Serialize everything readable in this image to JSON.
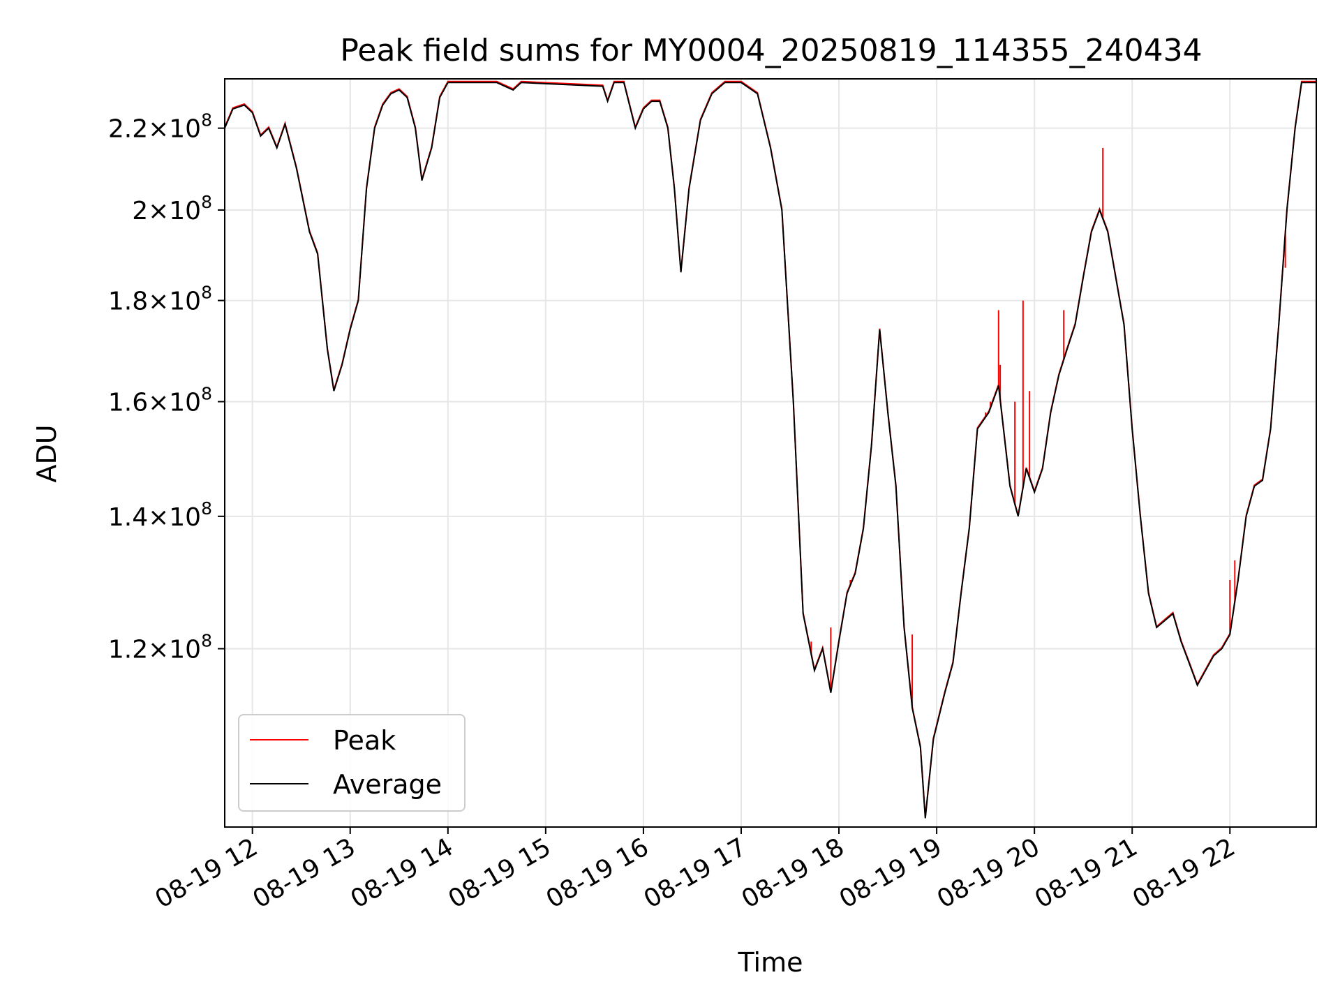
{
  "chart_data": {
    "type": "line",
    "title": "Peak field sums for MY0004_20250819_114355_240434",
    "xlabel": "Time",
    "ylabel": "ADU",
    "yscale": "log",
    "grid": true,
    "legend_position": "lower-left",
    "xlim": [
      "2025-08-19 11:43",
      "2025-08-19 22:53"
    ],
    "ylim": [
      97500000,
      233000000
    ],
    "x_ticks": [
      {
        "t": "2025-08-19 12:00",
        "label": "08-19 12"
      },
      {
        "t": "2025-08-19 13:00",
        "label": "08-19 13"
      },
      {
        "t": "2025-08-19 14:00",
        "label": "08-19 14"
      },
      {
        "t": "2025-08-19 15:00",
        "label": "08-19 15"
      },
      {
        "t": "2025-08-19 16:00",
        "label": "08-19 16"
      },
      {
        "t": "2025-08-19 17:00",
        "label": "08-19 17"
      },
      {
        "t": "2025-08-19 18:00",
        "label": "08-19 18"
      },
      {
        "t": "2025-08-19 19:00",
        "label": "08-19 19"
      },
      {
        "t": "2025-08-19 20:00",
        "label": "08-19 20"
      },
      {
        "t": "2025-08-19 21:00",
        "label": "08-19 21"
      },
      {
        "t": "2025-08-19 22:00",
        "label": "08-19 22"
      }
    ],
    "y_ticks": [
      {
        "value": 120000000,
        "mantissa": "1.2",
        "exp": "8"
      },
      {
        "value": 140000000,
        "mantissa": "1.4",
        "exp": "8"
      },
      {
        "value": 160000000,
        "mantissa": "1.6",
        "exp": "8"
      },
      {
        "value": 180000000,
        "mantissa": "1.8",
        "exp": "8"
      },
      {
        "value": 200000000,
        "mantissa": "2",
        "exp": "8"
      },
      {
        "value": 220000000,
        "mantissa": "2.2",
        "exp": "8"
      }
    ],
    "series": [
      {
        "name": "Average",
        "color": "#000000",
        "points": [
          [
            "2025-08-19 11:43",
            220000000.0
          ],
          [
            "2025-08-19 11:48",
            225000000.0
          ],
          [
            "2025-08-19 11:55",
            226000000.0
          ],
          [
            "2025-08-19 12:00",
            224000000.0
          ],
          [
            "2025-08-19 12:05",
            218000000.0
          ],
          [
            "2025-08-19 12:10",
            220000000.0
          ],
          [
            "2025-08-19 12:15",
            215000000.0
          ],
          [
            "2025-08-19 12:20",
            221000000.0
          ],
          [
            "2025-08-19 12:27",
            210000000.0
          ],
          [
            "2025-08-19 12:35",
            195000000.0
          ],
          [
            "2025-08-19 12:40",
            190000000.0
          ],
          [
            "2025-08-19 12:46",
            170000000.0
          ],
          [
            "2025-08-19 12:50",
            162000000.0
          ],
          [
            "2025-08-19 12:55",
            167000000.0
          ],
          [
            "2025-08-19 13:00",
            174000000.0
          ],
          [
            "2025-08-19 13:05",
            180000000.0
          ],
          [
            "2025-08-19 13:10",
            205000000.0
          ],
          [
            "2025-08-19 13:15",
            220000000.0
          ],
          [
            "2025-08-19 13:20",
            226000000.0
          ],
          [
            "2025-08-19 13:25",
            229000000.0
          ],
          [
            "2025-08-19 13:30",
            230000000.0
          ],
          [
            "2025-08-19 13:35",
            228000000.0
          ],
          [
            "2025-08-19 13:40",
            220000000.0
          ],
          [
            "2025-08-19 13:44",
            207000000.0
          ],
          [
            "2025-08-19 13:50",
            215000000.0
          ],
          [
            "2025-08-19 13:55",
            228000000.0
          ],
          [
            "2025-08-19 14:00",
            232000000.0
          ],
          [
            "2025-08-19 14:30",
            232000000.0
          ],
          [
            "2025-08-19 14:40",
            230000000.0
          ],
          [
            "2025-08-19 14:45",
            232000000.0
          ],
          [
            "2025-08-19 15:35",
            231000000.0
          ],
          [
            "2025-08-19 15:38",
            227000000.0
          ],
          [
            "2025-08-19 15:42",
            232000000.0
          ],
          [
            "2025-08-19 15:48",
            232000000.0
          ],
          [
            "2025-08-19 15:55",
            220000000.0
          ],
          [
            "2025-08-19 16:00",
            225000000.0
          ],
          [
            "2025-08-19 16:05",
            227000000.0
          ],
          [
            "2025-08-19 16:10",
            227000000.0
          ],
          [
            "2025-08-19 16:15",
            220000000.0
          ],
          [
            "2025-08-19 16:19",
            205000000.0
          ],
          [
            "2025-08-19 16:23",
            186000000.0
          ],
          [
            "2025-08-19 16:28",
            205000000.0
          ],
          [
            "2025-08-19 16:35",
            222000000.0
          ],
          [
            "2025-08-19 16:42",
            229000000.0
          ],
          [
            "2025-08-19 16:50",
            232000000.0
          ],
          [
            "2025-08-19 17:00",
            232000000.0
          ],
          [
            "2025-08-19 17:10",
            229000000.0
          ],
          [
            "2025-08-19 17:18",
            215000000.0
          ],
          [
            "2025-08-19 17:25",
            200000000.0
          ],
          [
            "2025-08-19 17:32",
            160000000.0
          ],
          [
            "2025-08-19 17:38",
            125000000.0
          ],
          [
            "2025-08-19 17:45",
            117000000.0
          ],
          [
            "2025-08-19 17:50",
            120000000.0
          ],
          [
            "2025-08-19 17:55",
            114000000.0
          ],
          [
            "2025-08-19 18:00",
            121000000.0
          ],
          [
            "2025-08-19 18:05",
            128000000.0
          ],
          [
            "2025-08-19 18:10",
            131000000.0
          ],
          [
            "2025-08-19 18:15",
            138000000.0
          ],
          [
            "2025-08-19 18:20",
            152000000.0
          ],
          [
            "2025-08-19 18:25",
            174000000.0
          ],
          [
            "2025-08-19 18:30",
            158000000.0
          ],
          [
            "2025-08-19 18:35",
            145000000.0
          ],
          [
            "2025-08-19 18:40",
            123000000.0
          ],
          [
            "2025-08-19 18:45",
            112000000.0
          ],
          [
            "2025-08-19 18:50",
            107000000.0
          ],
          [
            "2025-08-19 18:53",
            98500000.0
          ],
          [
            "2025-08-19 18:58",
            108000000.0
          ],
          [
            "2025-08-19 19:05",
            114000000.0
          ],
          [
            "2025-08-19 19:10",
            118000000.0
          ],
          [
            "2025-08-19 19:15",
            128000000.0
          ],
          [
            "2025-08-19 19:20",
            138000000.0
          ],
          [
            "2025-08-19 19:25",
            155000000.0
          ],
          [
            "2025-08-19 19:32",
            158000000.0
          ],
          [
            "2025-08-19 19:38",
            163000000.0
          ],
          [
            "2025-08-19 19:45",
            145000000.0
          ],
          [
            "2025-08-19 19:50",
            140000000.0
          ],
          [
            "2025-08-19 19:55",
            148000000.0
          ],
          [
            "2025-08-19 20:00",
            144000000.0
          ],
          [
            "2025-08-19 20:05",
            148000000.0
          ],
          [
            "2025-08-19 20:10",
            158000000.0
          ],
          [
            "2025-08-19 20:15",
            165000000.0
          ],
          [
            "2025-08-19 20:20",
            170000000.0
          ],
          [
            "2025-08-19 20:25",
            175000000.0
          ],
          [
            "2025-08-19 20:30",
            185000000.0
          ],
          [
            "2025-08-19 20:35",
            195000000.0
          ],
          [
            "2025-08-19 20:40",
            200000000.0
          ],
          [
            "2025-08-19 20:45",
            195000000.0
          ],
          [
            "2025-08-19 20:55",
            175000000.0
          ],
          [
            "2025-08-19 21:00",
            155000000.0
          ],
          [
            "2025-08-19 21:05",
            140000000.0
          ],
          [
            "2025-08-19 21:10",
            128000000.0
          ],
          [
            "2025-08-19 21:15",
            123000000.0
          ],
          [
            "2025-08-19 21:20",
            124000000.0
          ],
          [
            "2025-08-19 21:25",
            125000000.0
          ],
          [
            "2025-08-19 21:30",
            121000000.0
          ],
          [
            "2025-08-19 21:35",
            118000000.0
          ],
          [
            "2025-08-19 21:40",
            115000000.0
          ],
          [
            "2025-08-19 21:45",
            117000000.0
          ],
          [
            "2025-08-19 21:50",
            119000000.0
          ],
          [
            "2025-08-19 21:55",
            120000000.0
          ],
          [
            "2025-08-19 22:00",
            122000000.0
          ],
          [
            "2025-08-19 22:05",
            130000000.0
          ],
          [
            "2025-08-19 22:10",
            140000000.0
          ],
          [
            "2025-08-19 22:15",
            145000000.0
          ],
          [
            "2025-08-19 22:20",
            146000000.0
          ],
          [
            "2025-08-19 22:25",
            155000000.0
          ],
          [
            "2025-08-19 22:30",
            175000000.0
          ],
          [
            "2025-08-19 22:35",
            200000000.0
          ],
          [
            "2025-08-19 22:40",
            220000000.0
          ],
          [
            "2025-08-19 22:44",
            232000000.0
          ],
          [
            "2025-08-19 22:53",
            232000000.0
          ]
        ]
      },
      {
        "name": "Peak",
        "color": "#ff0000",
        "spikes": [
          [
            "2025-08-19 17:43",
            121000000.0
          ],
          [
            "2025-08-19 17:55",
            123000000.0
          ],
          [
            "2025-08-19 18:07",
            130000000.0
          ],
          [
            "2025-08-19 18:45",
            122000000.0
          ],
          [
            "2025-08-19 19:30",
            158000000.0
          ],
          [
            "2025-08-19 19:33",
            160000000.0
          ],
          [
            "2025-08-19 19:38",
            178000000.0
          ],
          [
            "2025-08-19 19:39",
            167000000.0
          ],
          [
            "2025-08-19 19:48",
            160000000.0
          ],
          [
            "2025-08-19 19:53",
            180000000.0
          ],
          [
            "2025-08-19 19:57",
            162000000.0
          ],
          [
            "2025-08-19 20:18",
            178000000.0
          ],
          [
            "2025-08-19 20:42",
            215000000.0
          ],
          [
            "2025-08-19 22:00",
            130000000.0
          ],
          [
            "2025-08-19 22:03",
            133000000.0
          ],
          [
            "2025-08-19 22:34",
            187000000.0
          ]
        ]
      }
    ]
  }
}
